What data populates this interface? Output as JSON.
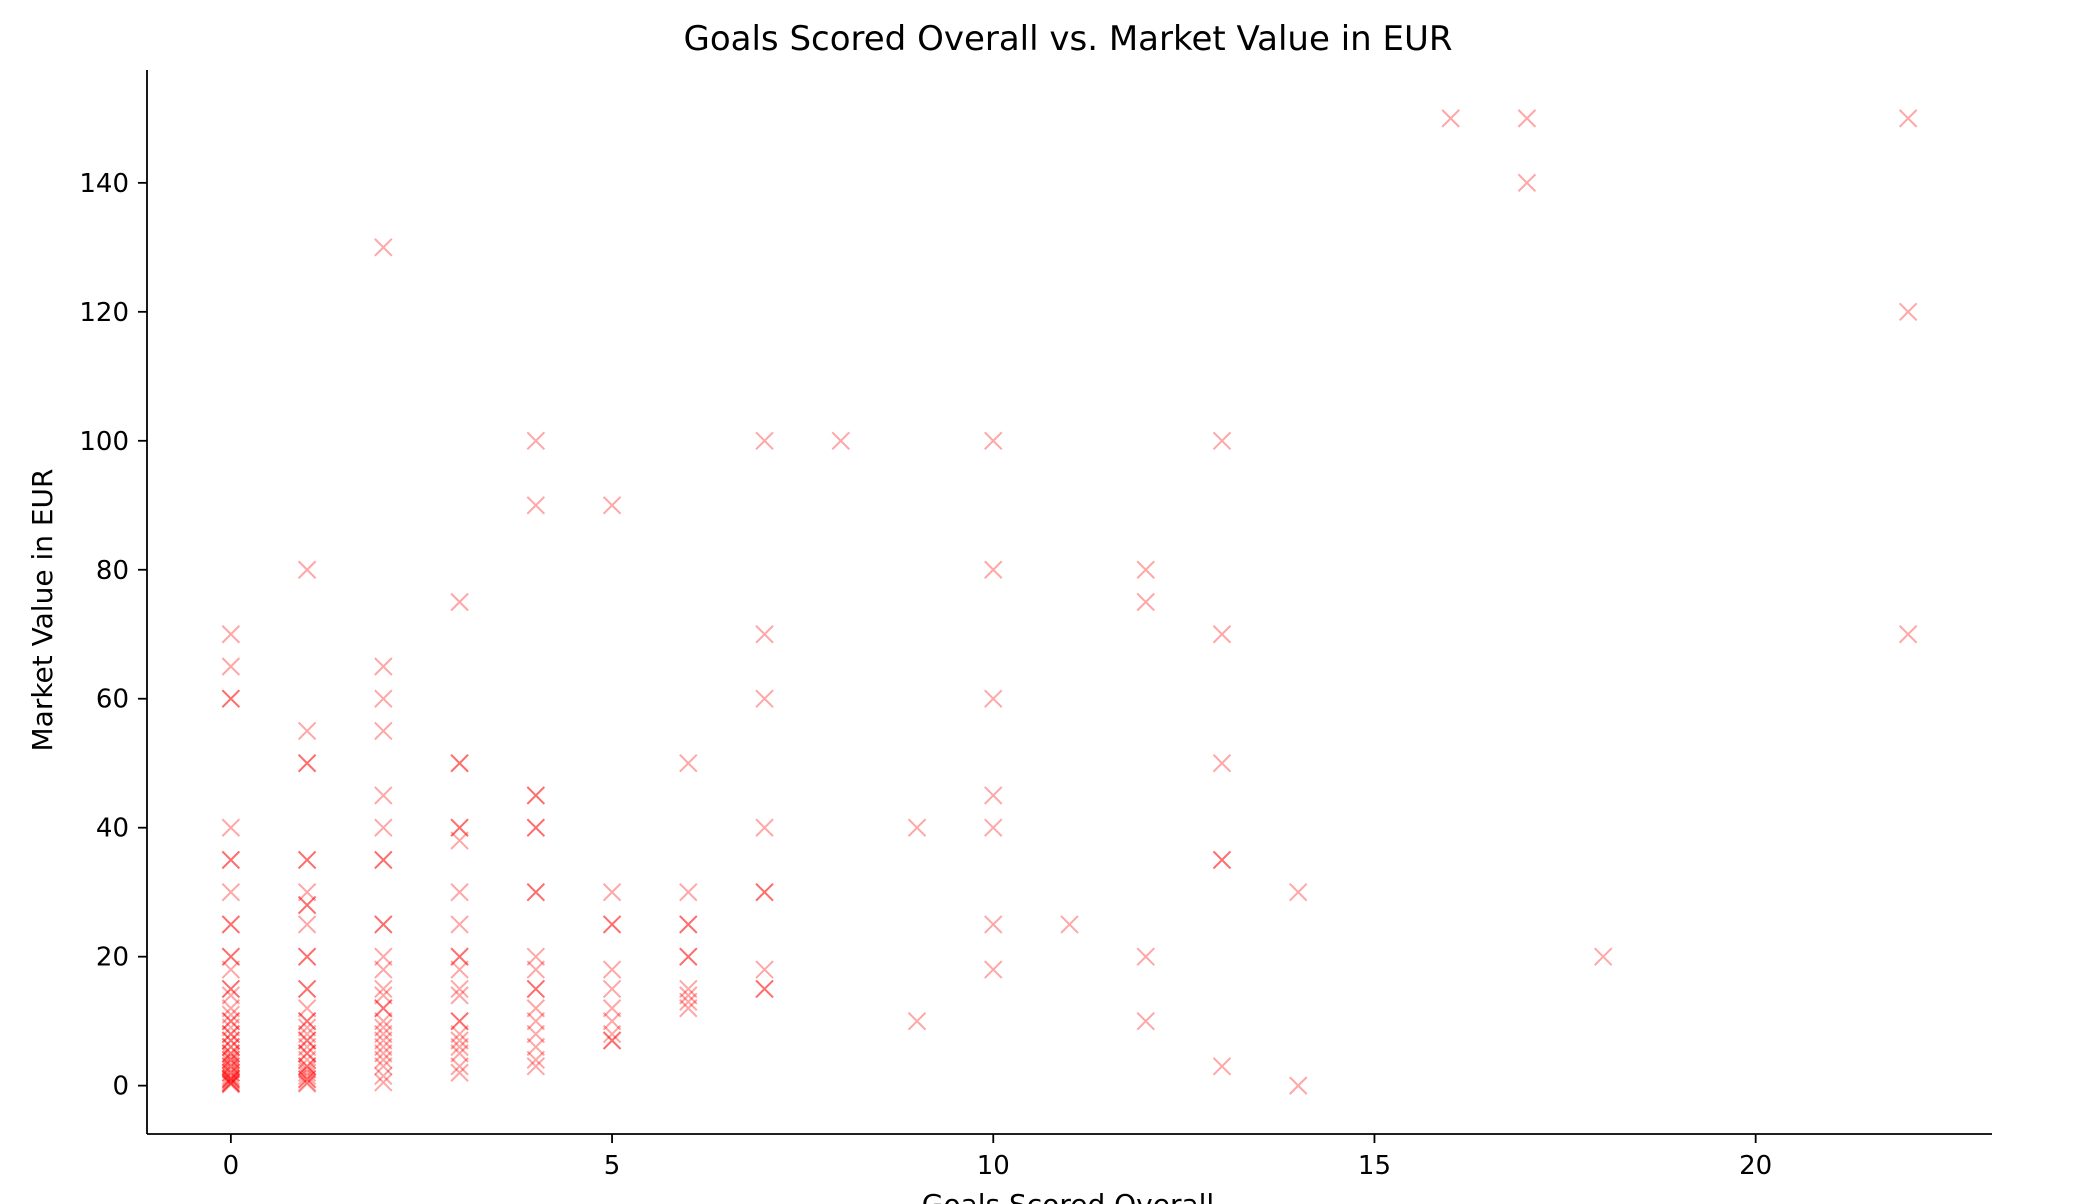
{
  "chart_data": {
    "type": "scatter",
    "title": "Goals Scored Overall vs. Market Value in EUR",
    "xlabel": "Goals Scored Overall",
    "ylabel": "Market Value in EUR",
    "xlim": [
      -1.1,
      23.1
    ],
    "ylim": [
      -7.5,
      157.5
    ],
    "xticks": [
      0,
      5,
      10,
      15,
      20
    ],
    "yticks": [
      0,
      20,
      40,
      60,
      80,
      100,
      120,
      140
    ],
    "grid": false,
    "legend": "none",
    "marker": "x",
    "marker_color": "#ff0000",
    "marker_alpha": 0.35,
    "series": [
      {
        "points": [
          [
            0,
            70
          ],
          [
            0,
            65
          ],
          [
            0,
            60
          ],
          [
            0,
            60
          ],
          [
            0,
            40
          ],
          [
            0,
            35
          ],
          [
            0,
            35
          ],
          [
            0,
            30
          ],
          [
            0,
            25
          ],
          [
            0,
            25
          ],
          [
            0,
            20
          ],
          [
            0,
            20
          ],
          [
            0,
            18
          ],
          [
            0,
            15
          ],
          [
            0,
            15
          ],
          [
            0,
            14
          ],
          [
            0,
            12
          ],
          [
            0,
            11
          ],
          [
            0,
            10
          ],
          [
            0,
            10
          ],
          [
            0,
            9
          ],
          [
            0,
            8
          ],
          [
            0,
            8
          ],
          [
            0,
            7
          ],
          [
            0,
            7
          ],
          [
            0,
            6
          ],
          [
            0,
            6
          ],
          [
            0,
            5
          ],
          [
            0,
            5
          ],
          [
            0,
            4.5
          ],
          [
            0,
            4
          ],
          [
            0,
            4
          ],
          [
            0,
            3.5
          ],
          [
            0,
            3
          ],
          [
            0,
            3
          ],
          [
            0,
            2.5
          ],
          [
            0,
            2
          ],
          [
            0,
            2
          ],
          [
            0,
            1.5
          ],
          [
            0,
            1.2
          ],
          [
            0,
            1
          ],
          [
            0,
            1
          ],
          [
            0,
            0.8
          ],
          [
            0,
            0.5
          ],
          [
            0,
            0.4
          ],
          [
            0,
            0.3
          ],
          [
            0,
            0.2
          ],
          [
            1,
            80
          ],
          [
            1,
            55
          ],
          [
            1,
            50
          ],
          [
            1,
            50
          ],
          [
            1,
            35
          ],
          [
            1,
            35
          ],
          [
            1,
            30
          ],
          [
            1,
            28
          ],
          [
            1,
            28
          ],
          [
            1,
            25
          ],
          [
            1,
            20
          ],
          [
            1,
            20
          ],
          [
            1,
            15
          ],
          [
            1,
            15
          ],
          [
            1,
            12
          ],
          [
            1,
            10
          ],
          [
            1,
            10
          ],
          [
            1,
            9
          ],
          [
            1,
            8
          ],
          [
            1,
            7
          ],
          [
            1,
            7
          ],
          [
            1,
            6
          ],
          [
            1,
            5
          ],
          [
            1,
            5
          ],
          [
            1,
            4
          ],
          [
            1,
            3
          ],
          [
            1,
            3
          ],
          [
            1,
            2.5
          ],
          [
            1,
            2
          ],
          [
            1,
            1.5
          ],
          [
            1,
            1
          ],
          [
            1,
            1
          ],
          [
            1,
            0.5
          ],
          [
            1,
            0.3
          ],
          [
            2,
            130
          ],
          [
            2,
            65
          ],
          [
            2,
            60
          ],
          [
            2,
            55
          ],
          [
            2,
            45
          ],
          [
            2,
            40
          ],
          [
            2,
            35
          ],
          [
            2,
            35
          ],
          [
            2,
            25
          ],
          [
            2,
            25
          ],
          [
            2,
            20
          ],
          [
            2,
            18
          ],
          [
            2,
            15
          ],
          [
            2,
            14
          ],
          [
            2,
            12
          ],
          [
            2,
            12
          ],
          [
            2,
            10
          ],
          [
            2,
            9
          ],
          [
            2,
            8
          ],
          [
            2,
            7
          ],
          [
            2,
            6
          ],
          [
            2,
            5
          ],
          [
            2,
            4
          ],
          [
            2,
            3
          ],
          [
            2,
            1.5
          ],
          [
            2,
            0.5
          ],
          [
            3,
            75
          ],
          [
            3,
            50
          ],
          [
            3,
            50
          ],
          [
            3,
            40
          ],
          [
            3,
            40
          ],
          [
            3,
            38
          ],
          [
            3,
            30
          ],
          [
            3,
            25
          ],
          [
            3,
            20
          ],
          [
            3,
            20
          ],
          [
            3,
            18
          ],
          [
            3,
            15
          ],
          [
            3,
            14
          ],
          [
            3,
            10
          ],
          [
            3,
            10
          ],
          [
            3,
            8
          ],
          [
            3,
            7
          ],
          [
            3,
            6
          ],
          [
            3,
            5
          ],
          [
            3,
            3
          ],
          [
            3,
            2
          ],
          [
            4,
            100
          ],
          [
            4,
            90
          ],
          [
            4,
            45
          ],
          [
            4,
            45
          ],
          [
            4,
            40
          ],
          [
            4,
            40
          ],
          [
            4,
            30
          ],
          [
            4,
            30
          ],
          [
            4,
            20
          ],
          [
            4,
            18
          ],
          [
            4,
            15
          ],
          [
            4,
            15
          ],
          [
            4,
            12
          ],
          [
            4,
            10
          ],
          [
            4,
            8
          ],
          [
            4,
            6
          ],
          [
            4,
            4
          ],
          [
            4,
            3
          ],
          [
            5,
            90
          ],
          [
            5,
            30
          ],
          [
            5,
            25
          ],
          [
            5,
            25
          ],
          [
            5,
            18
          ],
          [
            5,
            15
          ],
          [
            5,
            12
          ],
          [
            5,
            10
          ],
          [
            5,
            8
          ],
          [
            5,
            7
          ],
          [
            5,
            7
          ],
          [
            6,
            50
          ],
          [
            6,
            30
          ],
          [
            6,
            25
          ],
          [
            6,
            25
          ],
          [
            6,
            20
          ],
          [
            6,
            20
          ],
          [
            6,
            15
          ],
          [
            6,
            14
          ],
          [
            6,
            13
          ],
          [
            6,
            12
          ],
          [
            7,
            100
          ],
          [
            7,
            70
          ],
          [
            7,
            60
          ],
          [
            7,
            40
          ],
          [
            7,
            30
          ],
          [
            7,
            30
          ],
          [
            7,
            18
          ],
          [
            7,
            15
          ],
          [
            7,
            15
          ],
          [
            8,
            100
          ],
          [
            9,
            40
          ],
          [
            9,
            10
          ],
          [
            10,
            100
          ],
          [
            10,
            80
          ],
          [
            10,
            60
          ],
          [
            10,
            45
          ],
          [
            10,
            40
          ],
          [
            10,
            25
          ],
          [
            10,
            18
          ],
          [
            11,
            25
          ],
          [
            12,
            80
          ],
          [
            12,
            75
          ],
          [
            12,
            20
          ],
          [
            12,
            10
          ],
          [
            13,
            100
          ],
          [
            13,
            70
          ],
          [
            13,
            50
          ],
          [
            13,
            35
          ],
          [
            13,
            35
          ],
          [
            13,
            3
          ],
          [
            14,
            30
          ],
          [
            14,
            0
          ],
          [
            16,
            150
          ],
          [
            17,
            150
          ],
          [
            17,
            140
          ],
          [
            18,
            20
          ],
          [
            22,
            150
          ],
          [
            22,
            120
          ],
          [
            22,
            70
          ]
        ]
      }
    ]
  }
}
